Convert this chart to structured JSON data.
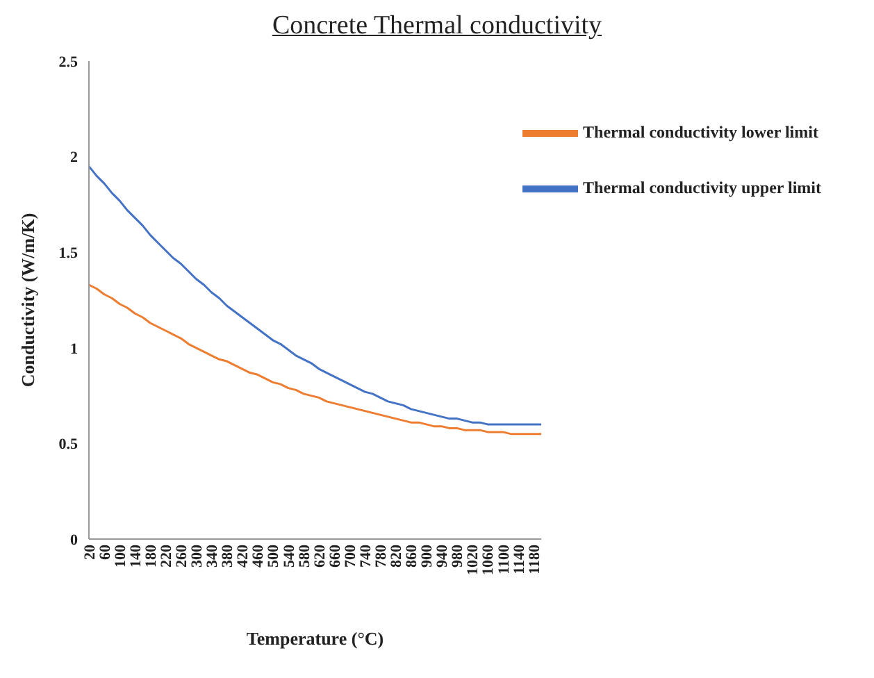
{
  "chart_data": {
    "type": "line",
    "title": "Concrete Thermal conductivity",
    "xlabel": "Temperature (°C)",
    "ylabel": "Conductivity (W/m/K)",
    "categories": [
      "20",
      null,
      "60",
      null,
      "100",
      null,
      "140",
      null,
      "180",
      null,
      "220",
      null,
      "260",
      null,
      "300",
      null,
      "340",
      null,
      "380",
      null,
      "420",
      null,
      "460",
      null,
      "500",
      null,
      "540",
      null,
      "580",
      null,
      "620",
      null,
      "660",
      null,
      "700",
      null,
      "740",
      null,
      "780",
      null,
      "820",
      null,
      "860",
      null,
      "900",
      null,
      "940",
      null,
      "980",
      null,
      "1020",
      null,
      "1060",
      null,
      "1100",
      null,
      "1140",
      null,
      "1180",
      null
    ],
    "series": [
      {
        "name": "Thermal conductivity upper limit",
        "color": "#4472c4",
        "values": [
          1.95,
          1.9,
          1.86,
          1.81,
          1.77,
          1.72,
          1.68,
          1.64,
          1.59,
          1.55,
          1.51,
          1.47,
          1.44,
          1.4,
          1.36,
          1.33,
          1.29,
          1.26,
          1.22,
          1.19,
          1.16,
          1.13,
          1.1,
          1.07,
          1.04,
          1.02,
          0.99,
          0.96,
          0.94,
          0.92,
          0.89,
          0.87,
          0.85,
          0.83,
          0.81,
          0.79,
          0.77,
          0.76,
          0.74,
          0.72,
          0.71,
          0.7,
          0.68,
          0.67,
          0.66,
          0.65,
          0.64,
          0.63,
          0.63,
          0.62,
          0.61,
          0.61,
          0.6,
          0.6,
          0.6,
          0.6,
          0.6,
          0.6,
          0.6,
          0.6
        ]
      },
      {
        "name": "Thermal conductivity lower limit",
        "color": "#ed7d31",
        "values": [
          1.33,
          1.31,
          1.28,
          1.26,
          1.23,
          1.21,
          1.18,
          1.16,
          1.13,
          1.11,
          1.09,
          1.07,
          1.05,
          1.02,
          1.0,
          0.98,
          0.96,
          0.94,
          0.93,
          0.91,
          0.89,
          0.87,
          0.86,
          0.84,
          0.82,
          0.81,
          0.79,
          0.78,
          0.76,
          0.75,
          0.74,
          0.72,
          0.71,
          0.7,
          0.69,
          0.68,
          0.67,
          0.66,
          0.65,
          0.64,
          0.63,
          0.62,
          0.61,
          0.61,
          0.6,
          0.59,
          0.59,
          0.58,
          0.58,
          0.57,
          0.57,
          0.57,
          0.56,
          0.56,
          0.56,
          0.55,
          0.55,
          0.55,
          0.55,
          0.55
        ]
      }
    ],
    "ylim": [
      0,
      2.5
    ],
    "yticks": [
      0,
      0.5,
      1,
      1.5,
      2,
      2.5
    ],
    "grid": false,
    "legend": "top right",
    "marker": "none",
    "line_style": "solid"
  }
}
